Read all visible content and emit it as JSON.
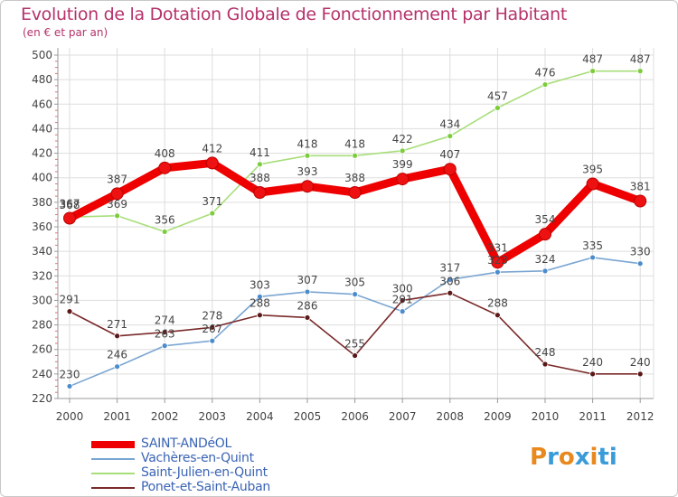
{
  "title": "Evolution de la Dotation Globale de Fonctionnement par Habitant",
  "subtitle": "(en € et par an)",
  "logo": {
    "text": "Proxiti",
    "letter_colors": [
      "#e8891f",
      "#3a9bd9",
      "#e8891f",
      "#3a9bd9",
      "#e8891f",
      "#3a9bd9",
      "#3a9bd9"
    ]
  },
  "chart_data": {
    "type": "line",
    "title": "Evolution de la Dotation Globale de Fonctionnement par Habitant",
    "subtitle": "(en € et par an)",
    "x": [
      "2000",
      "2001",
      "2002",
      "2003",
      "2004",
      "2005",
      "2006",
      "2007",
      "2008",
      "2009",
      "2010",
      "2011",
      "2012"
    ],
    "ylim": [
      220,
      500
    ],
    "yticks": [
      220,
      240,
      260,
      280,
      300,
      320,
      340,
      360,
      380,
      400,
      420,
      440,
      460,
      480,
      500
    ],
    "grid": true,
    "legend_position": "bottom-left",
    "series": [
      {
        "name": "SAINT-ANDéOL",
        "color": "#ee0000",
        "marker": "#ee1111",
        "emphasis": true,
        "values": [
          367,
          387,
          408,
          412,
          388,
          393,
          388,
          399,
          407,
          331,
          354,
          395,
          381
        ],
        "labels": [
          "367",
          "387",
          "408",
          "412",
          "388",
          "393",
          "388",
          "399",
          "407",
          "331",
          "354",
          "395",
          "381"
        ]
      },
      {
        "name": "Vachères-en-Quint",
        "color": "#7aa6d2",
        "marker": "#4d8ccc",
        "emphasis": false,
        "values": [
          230,
          246,
          263,
          267,
          303,
          307,
          305,
          291,
          317,
          323,
          324,
          335,
          330
        ],
        "labels": [
          "230",
          "246",
          "263",
          "267",
          "303",
          "307",
          "305",
          "291",
          "317",
          "323",
          "324",
          "335",
          "330"
        ]
      },
      {
        "name": "Saint-Julien-en-Quint",
        "color": "#a8de7a",
        "marker": "#7ccc3c",
        "emphasis": false,
        "values": [
          368,
          369,
          356,
          371,
          411,
          418,
          418,
          422,
          434,
          457,
          476,
          487,
          487
        ],
        "labels": [
          "368",
          "369",
          "356",
          "371",
          "411",
          "418",
          "418",
          "422",
          "434",
          "457",
          "476",
          "487",
          "487"
        ]
      },
      {
        "name": "Ponet-et-Saint-Auban",
        "color": "#7a2a2a",
        "marker": "#5a1818",
        "emphasis": false,
        "values": [
          291,
          271,
          274,
          278,
          288,
          286,
          255,
          300,
          306,
          288,
          248,
          240,
          240
        ],
        "labels": [
          "291",
          "271",
          "274",
          "278",
          "288",
          "286",
          "255",
          "300",
          "306",
          "288",
          "248",
          "240",
          "240"
        ]
      }
    ]
  }
}
